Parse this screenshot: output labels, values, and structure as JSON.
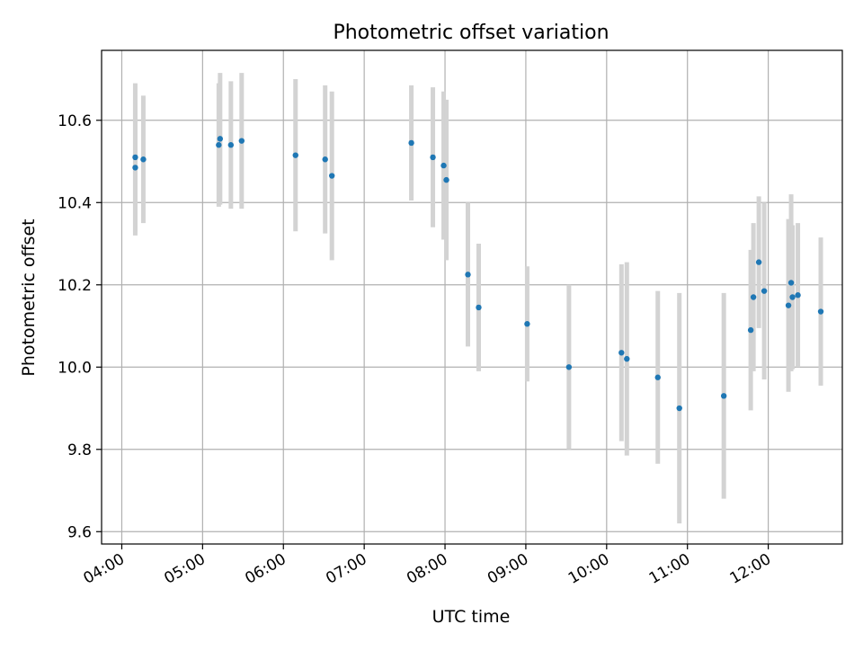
{
  "chart_data": {
    "type": "scatter",
    "title": "Photometric offset variation",
    "xlabel": "UTC time",
    "ylabel": "Photometric offset",
    "x_axis_type": "time",
    "xlim": [
      "03:45",
      "12:55"
    ],
    "ylim": [
      9.57,
      10.77
    ],
    "xticks": [
      "04:00",
      "05:00",
      "06:00",
      "07:00",
      "08:00",
      "09:00",
      "10:00",
      "11:00",
      "12:00"
    ],
    "yticks": [
      9.6,
      9.8,
      10.0,
      10.2,
      10.4,
      10.6
    ],
    "ytick_labels": [
      "9.6",
      "9.8",
      "10.0",
      "10.2",
      "10.4",
      "10.6"
    ],
    "grid": true,
    "legend": false,
    "colors": {
      "marker": "#1f77b4",
      "errorbar": "#d3d3d3",
      "grid": "#b0b0b0",
      "axes": "#000000"
    },
    "series": [
      {
        "marker": "point",
        "points": [
          {
            "x": "04:10",
            "y": 10.51,
            "yerr": 0.18
          },
          {
            "x": "04:10",
            "y": 10.485,
            "yerr": 0.165
          },
          {
            "x": "04:16",
            "y": 10.505,
            "yerr": 0.155
          },
          {
            "x": "05:12",
            "y": 10.54,
            "yerr": 0.15
          },
          {
            "x": "05:13",
            "y": 10.555,
            "yerr": 0.16
          },
          {
            "x": "05:21",
            "y": 10.54,
            "yerr": 0.155
          },
          {
            "x": "05:29",
            "y": 10.55,
            "yerr": 0.165
          },
          {
            "x": "06:09",
            "y": 10.515,
            "yerr": 0.185
          },
          {
            "x": "06:31",
            "y": 10.505,
            "yerr": 0.18
          },
          {
            "x": "06:36",
            "y": 10.465,
            "yerr": 0.205
          },
          {
            "x": "07:35",
            "y": 10.545,
            "yerr": 0.14
          },
          {
            "x": "07:51",
            "y": 10.51,
            "yerr": 0.17
          },
          {
            "x": "07:59",
            "y": 10.49,
            "yerr": 0.18
          },
          {
            "x": "08:01",
            "y": 10.455,
            "yerr": 0.195
          },
          {
            "x": "08:17",
            "y": 10.225,
            "yerr": 0.175
          },
          {
            "x": "08:25",
            "y": 10.145,
            "yerr": 0.155
          },
          {
            "x": "09:01",
            "y": 10.105,
            "yerr": 0.14
          },
          {
            "x": "09:32",
            "y": 10.0,
            "yerr": 0.2
          },
          {
            "x": "10:11",
            "y": 10.035,
            "yerr": 0.215
          },
          {
            "x": "10:15",
            "y": 10.02,
            "yerr": 0.235
          },
          {
            "x": "10:38",
            "y": 9.975,
            "yerr": 0.21
          },
          {
            "x": "10:54",
            "y": 9.9,
            "yerr": 0.28
          },
          {
            "x": "11:27",
            "y": 9.93,
            "yerr": 0.25
          },
          {
            "x": "11:47",
            "y": 10.09,
            "yerr": 0.195
          },
          {
            "x": "11:49",
            "y": 10.17,
            "yerr": 0.18
          },
          {
            "x": "11:53",
            "y": 10.255,
            "yerr": 0.16
          },
          {
            "x": "11:57",
            "y": 10.185,
            "yerr": 0.215
          },
          {
            "x": "12:15",
            "y": 10.15,
            "yerr": 0.21
          },
          {
            "x": "12:17",
            "y": 10.205,
            "yerr": 0.215
          },
          {
            "x": "12:18",
            "y": 10.17,
            "yerr": 0.175
          },
          {
            "x": "12:22",
            "y": 10.175,
            "yerr": 0.175
          },
          {
            "x": "12:39",
            "y": 10.135,
            "yerr": 0.18
          }
        ]
      }
    ]
  }
}
